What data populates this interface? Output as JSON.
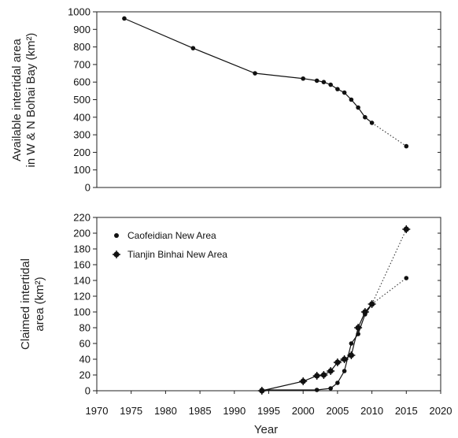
{
  "chart_data": [
    {
      "type": "line",
      "panel": "top",
      "ylabel": [
        "Available intertidal area",
        "in W & N Bohai Bay (km²)"
      ],
      "ylim": [
        0,
        1000
      ],
      "yticks": [
        0,
        100,
        200,
        300,
        400,
        500,
        600,
        700,
        800,
        900,
        1000
      ],
      "xlim": [
        1970,
        2020
      ],
      "grid": false,
      "series": [
        {
          "observed": [
            [
              1974,
              962
            ],
            [
              1984,
              793
            ],
            [
              1993,
              650
            ],
            [
              2000,
              620
            ],
            [
              2002,
              608
            ],
            [
              2003,
              600
            ],
            [
              2004,
              585
            ],
            [
              2005,
              560
            ],
            [
              2006,
              540
            ],
            [
              2007,
              500
            ],
            [
              2008,
              455
            ],
            [
              2009,
              400
            ],
            [
              2010,
              368
            ]
          ],
          "projected": [
            [
              2010,
              368
            ],
            [
              2015,
              235
            ]
          ]
        }
      ]
    },
    {
      "type": "line",
      "panel": "bottom",
      "ylabel": [
        "Claimed intertidal",
        "area (km²)"
      ],
      "xlabel": "Year",
      "ylim": [
        0,
        220
      ],
      "yticks": [
        0,
        20,
        40,
        60,
        80,
        100,
        120,
        140,
        160,
        180,
        200,
        220
      ],
      "xlim": [
        1970,
        2020
      ],
      "xticks": [
        1970,
        1975,
        1980,
        1985,
        1990,
        1995,
        2000,
        2005,
        2010,
        2015,
        2020
      ],
      "grid": false,
      "legend": "top-left",
      "series": [
        {
          "name": "Caofeidian New Area",
          "marker": "dot",
          "observed": [
            [
              1994,
              1
            ],
            [
              2002,
              1
            ],
            [
              2004,
              3
            ],
            [
              2005,
              10
            ],
            [
              2006,
              25
            ],
            [
              2007,
              60
            ],
            [
              2008,
              72
            ],
            [
              2009,
              97
            ],
            [
              2010,
              110
            ]
          ],
          "projected": [
            [
              2010,
              110
            ],
            [
              2015,
              143
            ]
          ]
        },
        {
          "name": "Tianjin Binhai New Area",
          "marker": "star",
          "observed": [
            [
              1994,
              0
            ],
            [
              2000,
              12
            ],
            [
              2002,
              19
            ],
            [
              2003,
              20
            ],
            [
              2004,
              25
            ],
            [
              2005,
              36
            ],
            [
              2006,
              40
            ],
            [
              2007,
              45
            ],
            [
              2008,
              80
            ],
            [
              2009,
              100
            ],
            [
              2010,
              110
            ]
          ],
          "projected": [
            [
              2010,
              110
            ],
            [
              2015,
              205
            ]
          ]
        }
      ]
    }
  ]
}
